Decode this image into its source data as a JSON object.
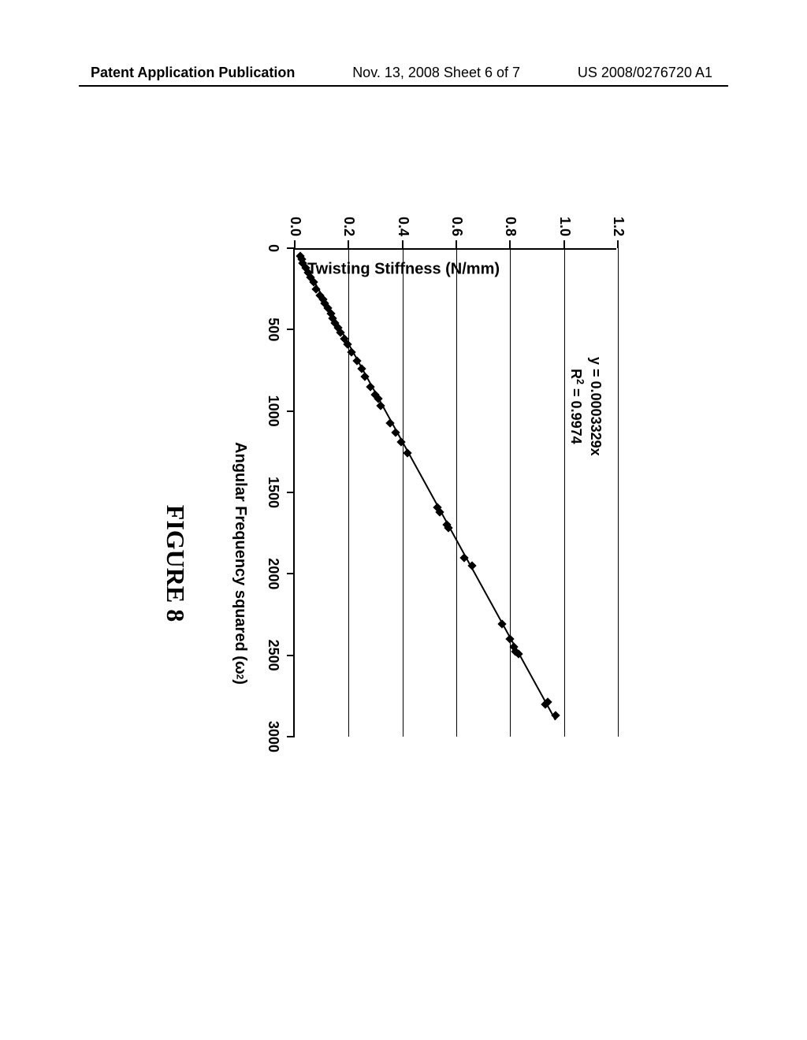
{
  "header": {
    "left": "Patent Application Publication",
    "center": "Nov. 13, 2008  Sheet 6 of 7",
    "right": "US 2008/0276720 A1"
  },
  "chart": {
    "type": "scatter",
    "y_axis_title": "Twisting Stiffness (N/mm)",
    "x_axis_title_pre": "Angular Frequency squared (ω",
    "x_axis_title_sup": "2",
    "x_axis_title_post": ")",
    "equation_line1": "y = 0.0003329x",
    "equation_line2_pre": "R",
    "equation_line2_sup": "2",
    "equation_line2_post": " = 0.9974",
    "xlim": [
      0,
      3000
    ],
    "ylim": [
      0.0,
      1.2
    ],
    "x_tick_step": 500,
    "x_ticks": [
      0,
      500,
      1000,
      1500,
      2000,
      2500,
      3000
    ],
    "x_tick_labels": [
      "0",
      "500",
      "1000",
      "1500",
      "2000",
      "2500",
      "3000"
    ],
    "y_ticks": [
      0.0,
      0.2,
      0.4,
      0.6,
      0.8,
      1.0,
      1.2
    ],
    "y_tick_labels": [
      "0.0",
      "0.2",
      "0.4",
      "0.6",
      "0.8",
      "1.0",
      "1.2"
    ],
    "grid_color": "#000000",
    "background_color": "#ffffff",
    "line_color": "#000000",
    "marker_color": "#000000",
    "marker_style": "diamond",
    "marker_size": 8,
    "data_points": [
      [
        50,
        0.02
      ],
      [
        70,
        0.025
      ],
      [
        90,
        0.03
      ],
      [
        120,
        0.04
      ],
      [
        150,
        0.05
      ],
      [
        180,
        0.06
      ],
      [
        210,
        0.07
      ],
      [
        250,
        0.08
      ],
      [
        290,
        0.095
      ],
      [
        315,
        0.105
      ],
      [
        340,
        0.112
      ],
      [
        370,
        0.122
      ],
      [
        400,
        0.135
      ],
      [
        430,
        0.14
      ],
      [
        460,
        0.15
      ],
      [
        490,
        0.16
      ],
      [
        520,
        0.17
      ],
      [
        555,
        0.185
      ],
      [
        590,
        0.195
      ],
      [
        640,
        0.21
      ],
      [
        693,
        0.23
      ],
      [
        740,
        0.25
      ],
      [
        790,
        0.26
      ],
      [
        850,
        0.28
      ],
      [
        900,
        0.3
      ],
      [
        925,
        0.31
      ],
      [
        970,
        0.32
      ],
      [
        1075,
        0.355
      ],
      [
        1130,
        0.375
      ],
      [
        1190,
        0.395
      ],
      [
        1260,
        0.42
      ],
      [
        1590,
        0.53
      ],
      [
        1620,
        0.54
      ],
      [
        1700,
        0.565
      ],
      [
        1720,
        0.57
      ],
      [
        1900,
        0.63
      ],
      [
        1950,
        0.66
      ],
      [
        2310,
        0.77
      ],
      [
        2400,
        0.8
      ],
      [
        2450,
        0.815
      ],
      [
        2475,
        0.82
      ],
      [
        2490,
        0.83
      ],
      [
        2785,
        0.94
      ],
      [
        2800,
        0.93
      ],
      [
        2870,
        0.97
      ]
    ],
    "trend_start": [
      50,
      0.017
    ],
    "trend_end": [
      2900,
      0.965
    ]
  },
  "figure_caption": "FIGURE 8"
}
